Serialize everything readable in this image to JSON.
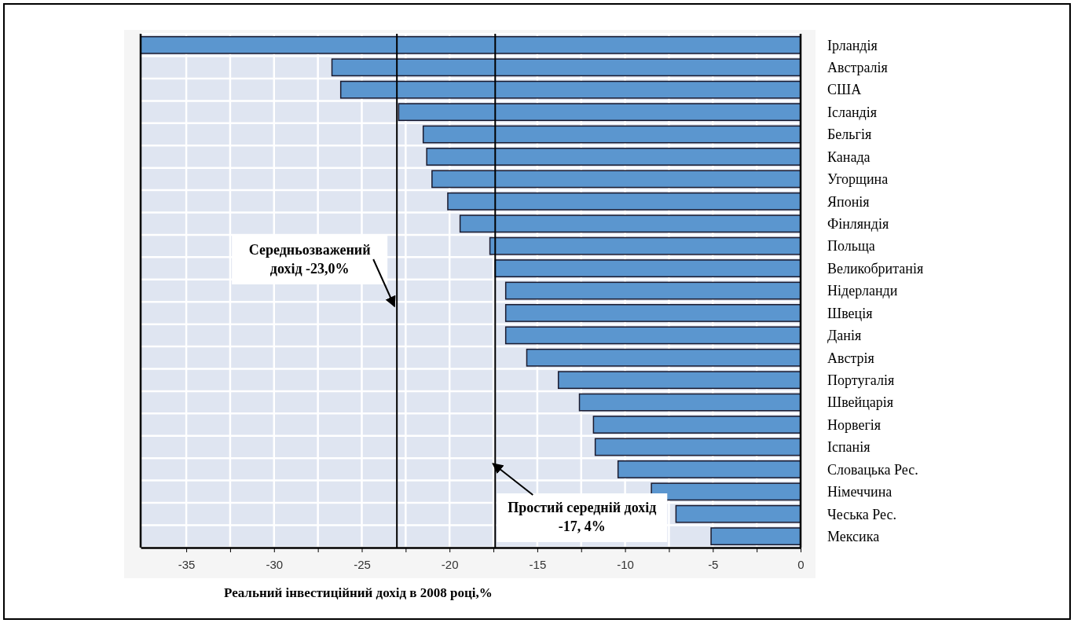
{
  "chart_data": {
    "type": "bar",
    "orientation": "horizontal",
    "xlabel": "Реальний інвестиційний дохід в 2008 році,%",
    "categories": [
      "Ірландія",
      "Австралія",
      "США",
      "Ісландія",
      "Бельгія",
      "Канада",
      "Угорщина",
      "Японія",
      "Фінляндія",
      "Польща",
      "Великобританія",
      "Нідерланди",
      "Швеція",
      "Данія",
      "Австрія",
      "Португалія",
      "Швейцарія",
      "Норвегія",
      "Іспанія",
      "Словацька Рес.",
      "Німеччина",
      "Чеська Рес.",
      "Мексика"
    ],
    "values": [
      -37.6,
      -26.7,
      -26.2,
      -22.9,
      -21.5,
      -21.3,
      -21.0,
      -20.1,
      -19.4,
      -17.7,
      -17.4,
      -16.8,
      -16.8,
      -16.8,
      -15.6,
      -13.8,
      -12.6,
      -11.8,
      -11.7,
      -10.4,
      -8.5,
      -7.1,
      -5.1
    ],
    "color": "#5b96cf",
    "xlim": [
      -37.6,
      0
    ],
    "xticks": [
      -35,
      {
        "value": -32.5,
        "label": null
      },
      -30,
      {
        "value": -27.5,
        "label": null
      },
      -25,
      {
        "value": -22.5,
        "label": null
      },
      -20,
      {
        "value": -17.5,
        "label": null
      },
      -15,
      {
        "value": -12.5,
        "label": null
      },
      -10,
      {
        "value": -7.5,
        "label": null
      },
      -5,
      {
        "value": -2.5,
        "label": null
      },
      0
    ],
    "ref_lines": [
      {
        "axis": "x",
        "value": -23.0,
        "label": "Середньозважений дохід -23,0%",
        "color": "#000000"
      },
      {
        "axis": "x",
        "value": -17.4,
        "label": "Простий середній дохід -17, 4%",
        "color": "#000000"
      }
    ],
    "grid": true
  }
}
